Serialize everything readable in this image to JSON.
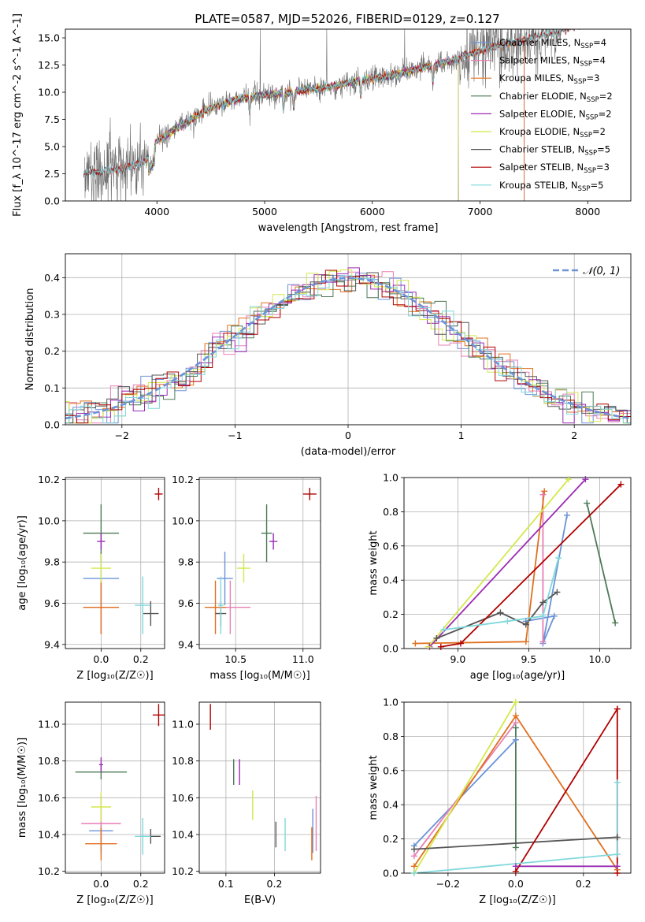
{
  "figure_title": "PLATE=0587, MJD=52026, FIBERID=0129, z=0.127",
  "colors": {
    "chabrier_miles": "#6b93d6",
    "salpeter_miles": "#e87fb4",
    "kroupa_miles": "#e0701f",
    "chabrier_elodie": "#4d7a57",
    "salpeter_elodie": "#9a2bb5",
    "kroupa_elodie": "#d4e84a",
    "chabrier_stelib": "#555555",
    "salpeter_stelib": "#b00000",
    "kroupa_stelib": "#7fd8dc",
    "gauss": "#6b93d6",
    "grid": "#b0b0b0"
  },
  "chart_data": [
    {
      "id": "spectrum",
      "type": "line",
      "title": "PLATE=0587, MJD=52026, FIBERID=0129, z=0.127",
      "xlabel": "wavelength [Angstrom, rest frame]",
      "ylabel": "Flux [f_λ 10^-17 erg cm^-2 s^-1 A^-1]",
      "xlim": [
        3150,
        8400
      ],
      "ylim": [
        0,
        15.8
      ],
      "xticks": [
        4000,
        5000,
        6000,
        7000,
        8000
      ],
      "yticks": [
        0.0,
        2.5,
        5.0,
        7.5,
        10.0,
        12.5,
        15.0
      ],
      "legend": [
        {
          "label": "Chabrier MILES, N",
          "sub": "SSP",
          "suffix": "=4",
          "color": "chabrier_miles"
        },
        {
          "label": "Salpeter MILES, N",
          "sub": "SSP",
          "suffix": "=4",
          "color": "salpeter_miles"
        },
        {
          "label": "Kroupa MILES, N",
          "sub": "SSP",
          "suffix": "=3",
          "color": "kroupa_miles"
        },
        {
          "label": "Chabrier ELODIE, N",
          "sub": "SSP",
          "suffix": "=2",
          "color": "chabrier_elodie"
        },
        {
          "label": "Salpeter ELODIE, N",
          "sub": "SSP",
          "suffix": "=2",
          "color": "salpeter_elodie"
        },
        {
          "label": "Kroupa ELODIE, N",
          "sub": "SSP",
          "suffix": "=2",
          "color": "kroupa_elodie"
        },
        {
          "label": "Chabrier STELIB, N",
          "sub": "SSP",
          "suffix": "=5",
          "color": "chabrier_stelib"
        },
        {
          "label": "Salpeter STELIB, N",
          "sub": "SSP",
          "suffix": "=3",
          "color": "salpeter_stelib"
        },
        {
          "label": "Kroupa STELIB, N",
          "sub": "SSP",
          "suffix": "=5",
          "color": "kroupa_stelib"
        }
      ],
      "continuum_x": [
        3350,
        3500,
        3700,
        3900,
        4000,
        4200,
        4500,
        4800,
        5000,
        5300,
        5600,
        5900,
        6200,
        6500,
        6800,
        7000,
        7200,
        7400
      ],
      "continuum_y": [
        2.6,
        2.7,
        3.0,
        3.7,
        5.5,
        6.8,
        8.6,
        9.5,
        9.7,
        10.1,
        10.5,
        11.1,
        11.6,
        12.3,
        13.1,
        13.8,
        14.3,
        14.8
      ],
      "absorption_lines": [
        4861,
        5175,
        5270,
        5893,
        6563
      ],
      "spike_lines": [
        4958,
        5577,
        6300
      ],
      "model_ranges": {
        "chabrier_miles": [
          3540,
          7410
        ],
        "salpeter_miles": [
          3540,
          7410
        ],
        "kroupa_miles": [
          3540,
          7410
        ],
        "chabrier_elodie": [
          3900,
          6800
        ],
        "salpeter_elodie": [
          3900,
          6800
        ],
        "kroupa_elodie": [
          3900,
          6800
        ],
        "chabrier_stelib": [
          3320,
          8400
        ],
        "salpeter_stelib": [
          3320,
          8400
        ],
        "kroupa_stelib": [
          3320,
          8400
        ]
      }
    },
    {
      "id": "residuals",
      "type": "histogram",
      "xlabel": "(data-model)/error",
      "ylabel": "Normed distribution",
      "xlim": [
        -2.5,
        2.5
      ],
      "ylim": [
        0,
        0.465
      ],
      "xticks": [
        -2,
        -1,
        0,
        1,
        2
      ],
      "yticks": [
        0.0,
        0.1,
        0.2,
        0.3,
        0.4
      ],
      "legend_label": "𝒩(0, 1)",
      "gaussian": {
        "mean": 0,
        "sigma": 1
      }
    },
    {
      "id": "age_vs_Z",
      "type": "scatter",
      "xlabel": "Z [log₁₀(Z/Z☉)]",
      "ylabel": "age  [log₁₀(age/yr)]",
      "xlim": [
        -0.18,
        0.32
      ],
      "ylim": [
        9.38,
        10.21
      ],
      "xticks": [
        0.0,
        0.2
      ],
      "yticks": [
        9.4,
        9.6,
        9.8,
        10.0,
        10.2
      ],
      "points": [
        {
          "model": "chabrier_miles",
          "x": 0.0,
          "xerr": 0.09,
          "y": 9.72,
          "yerr": 0.13
        },
        {
          "model": "salpeter_miles",
          "x": 0.0,
          "xerr": 0.09,
          "y": 9.58,
          "yerr": 0.13
        },
        {
          "model": "kroupa_miles",
          "x": 0.0,
          "xerr": 0.09,
          "y": 9.58,
          "yerr": 0.13
        },
        {
          "model": "chabrier_elodie",
          "x": 0.0,
          "xerr": 0.09,
          "y": 9.94,
          "yerr": 0.14
        },
        {
          "model": "salpeter_elodie",
          "x": 0.0,
          "xerr": 0.02,
          "y": 9.9,
          "yerr": 0.04
        },
        {
          "model": "kroupa_elodie",
          "x": 0.0,
          "xerr": 0.05,
          "y": 9.77,
          "yerr": 0.07
        },
        {
          "model": "chabrier_stelib",
          "x": 0.25,
          "xerr": 0.04,
          "y": 9.55,
          "yerr": 0.06
        },
        {
          "model": "salpeter_stelib",
          "x": 0.29,
          "xerr": 0.02,
          "y": 10.13,
          "yerr": 0.03
        },
        {
          "model": "kroupa_stelib",
          "x": 0.21,
          "xerr": 0.04,
          "y": 9.59,
          "yerr": 0.14
        }
      ]
    },
    {
      "id": "age_vs_mass",
      "type": "scatter",
      "xlabel": "mass [log₁₀(M/M☉)]",
      "ylabel": "",
      "xlim": [
        10.23,
        11.13
      ],
      "ylim": [
        9.38,
        10.21
      ],
      "xticks": [
        10.5,
        11.0
      ],
      "yticks": [
        9.4,
        9.6,
        9.8,
        10.0,
        10.2
      ],
      "points": [
        {
          "model": "chabrier_miles",
          "x": 10.42,
          "xerr": 0.06,
          "y": 9.72,
          "yerr": 0.13
        },
        {
          "model": "salpeter_miles",
          "x": 10.46,
          "xerr": 0.15,
          "y": 9.58,
          "yerr": 0.13
        },
        {
          "model": "kroupa_miles",
          "x": 10.35,
          "xerr": 0.08,
          "y": 9.58,
          "yerr": 0.13
        },
        {
          "model": "chabrier_elodie",
          "x": 10.73,
          "xerr": 0.04,
          "y": 9.94,
          "yerr": 0.14
        },
        {
          "model": "salpeter_elodie",
          "x": 10.78,
          "xerr": 0.03,
          "y": 9.9,
          "yerr": 0.04
        },
        {
          "model": "kroupa_elodie",
          "x": 10.56,
          "xerr": 0.05,
          "y": 9.77,
          "yerr": 0.07
        },
        {
          "model": "chabrier_stelib",
          "x": 10.39,
          "xerr": 0.04,
          "y": 9.55,
          "yerr": 0.06
        },
        {
          "model": "salpeter_stelib",
          "x": 11.05,
          "xerr": 0.05,
          "y": 10.13,
          "yerr": 0.03
        },
        {
          "model": "kroupa_stelib",
          "x": 10.39,
          "xerr": 0.02,
          "y": 9.59,
          "yerr": 0.14
        }
      ]
    },
    {
      "id": "weight_vs_age",
      "type": "line",
      "xlabel": "age  [log₁₀(age/yr)]",
      "ylabel": "mass weight",
      "xlim": [
        8.62,
        10.22
      ],
      "ylim": [
        0,
        1
      ],
      "xticks": [
        9.0,
        9.5,
        10.0
      ],
      "yticks": [
        0.0,
        0.2,
        0.4,
        0.6,
        0.8,
        1.0
      ],
      "series": [
        {
          "model": "chabrier_miles",
          "x": [
            9.48,
            9.68,
            9.6,
            9.77
          ],
          "y": [
            0.16,
            0.19,
            0.03,
            0.78
          ]
        },
        {
          "model": "salpeter_miles",
          "x": [
            9.6,
            9.6
          ],
          "y": [
            0.04,
            0.9
          ]
        },
        {
          "model": "kroupa_miles",
          "x": [
            8.7,
            9.48,
            9.61
          ],
          "y": [
            0.03,
            0.04,
            0.92
          ]
        },
        {
          "model": "chabrier_elodie",
          "x": [
            9.91,
            10.11
          ],
          "y": [
            0.85,
            0.15
          ]
        },
        {
          "model": "salpeter_elodie",
          "x": [
            8.8,
            9.9
          ],
          "y": [
            0.01,
            0.99
          ]
        },
        {
          "model": "kroupa_elodie",
          "x": [
            8.79,
            9.78
          ],
          "y": [
            0.01,
            0.99
          ]
        },
        {
          "model": "chabrier_stelib",
          "x": [
            8.85,
            9.3,
            9.48,
            9.6,
            9.7
          ],
          "y": [
            0.06,
            0.21,
            0.14,
            0.27,
            0.33
          ]
        },
        {
          "model": "salpeter_stelib",
          "x": [
            8.88,
            9.02,
            10.15
          ],
          "y": [
            0.01,
            0.03,
            0.96
          ]
        },
        {
          "model": "kroupa_stelib",
          "x": [
            8.9,
            9.35,
            9.6,
            9.71
          ],
          "y": [
            0.11,
            0.16,
            0.19,
            0.53
          ]
        }
      ]
    },
    {
      "id": "mass_vs_Z",
      "type": "scatter",
      "xlabel": "Z [log₁₀(Z/Z☉)]",
      "ylabel": "mass [log₁₀(M/M☉)]",
      "xlim": [
        -0.18,
        0.32
      ],
      "ylim": [
        10.19,
        11.12
      ],
      "xticks": [
        0.0,
        0.2
      ],
      "yticks": [
        10.2,
        10.4,
        10.6,
        10.8,
        11.0
      ],
      "points": [
        {
          "model": "chabrier_miles",
          "x": 0.0,
          "xerr": 0.06,
          "y": 10.42,
          "yerr": 0.12
        },
        {
          "model": "salpeter_miles",
          "x": 0.0,
          "xerr": 0.1,
          "y": 10.46,
          "yerr": 0.15
        },
        {
          "model": "kroupa_miles",
          "x": 0.0,
          "xerr": 0.08,
          "y": 10.35,
          "yerr": 0.09
        },
        {
          "model": "chabrier_elodie",
          "x": 0.0,
          "xerr": 0.13,
          "y": 10.74,
          "yerr": 0.04
        },
        {
          "model": "salpeter_elodie",
          "x": 0.0,
          "xerr": 0.01,
          "y": 10.78,
          "yerr": 0.04
        },
        {
          "model": "kroupa_elodie",
          "x": 0.0,
          "xerr": 0.05,
          "y": 10.55,
          "yerr": 0.08
        },
        {
          "model": "chabrier_stelib",
          "x": 0.25,
          "xerr": 0.05,
          "y": 10.39,
          "yerr": 0.04
        },
        {
          "model": "salpeter_stelib",
          "x": 0.29,
          "xerr": 0.03,
          "y": 11.05,
          "yerr": 0.06
        },
        {
          "model": "kroupa_stelib",
          "x": 0.21,
          "xerr": 0.04,
          "y": 10.39,
          "yerr": 0.1
        }
      ]
    },
    {
      "id": "mass_vs_ebv",
      "type": "scatter",
      "xlabel": "E(B-V)",
      "ylabel": "",
      "xlim": [
        0.045,
        0.295
      ],
      "ylim": [
        10.19,
        11.12
      ],
      "xticks": [
        0.1,
        0.2
      ],
      "yticks": [
        10.2,
        10.4,
        10.6,
        10.8,
        11.0
      ],
      "points": [
        {
          "model": "chabrier_miles",
          "x": 0.279,
          "xerr": 0,
          "y": 10.42,
          "yerr": 0.12
        },
        {
          "model": "salpeter_miles",
          "x": 0.286,
          "xerr": 0,
          "y": 10.46,
          "yerr": 0.15
        },
        {
          "model": "kroupa_miles",
          "x": 0.277,
          "xerr": 0,
          "y": 10.35,
          "yerr": 0.09
        },
        {
          "model": "chabrier_elodie",
          "x": 0.116,
          "xerr": 0,
          "y": 10.74,
          "yerr": 0.07
        },
        {
          "model": "salpeter_elodie",
          "x": 0.128,
          "xerr": 0,
          "y": 10.74,
          "yerr": 0.07
        },
        {
          "model": "kroupa_elodie",
          "x": 0.155,
          "xerr": 0,
          "y": 10.56,
          "yerr": 0.08
        },
        {
          "model": "chabrier_stelib",
          "x": 0.203,
          "xerr": 0,
          "y": 10.4,
          "yerr": 0.07
        },
        {
          "model": "salpeter_stelib",
          "x": 0.068,
          "xerr": 0,
          "y": 11.04,
          "yerr": 0.07
        },
        {
          "model": "kroupa_stelib",
          "x": 0.222,
          "xerr": 0,
          "y": 10.4,
          "yerr": 0.09
        }
      ]
    },
    {
      "id": "weight_vs_Z",
      "type": "line",
      "xlabel": "Z [log₁₀(Z/Z☉)]",
      "ylabel": "mass weight",
      "xlim": [
        -0.33,
        0.34
      ],
      "ylim": [
        0,
        1
      ],
      "xticks": [
        -0.2,
        0.0,
        0.2
      ],
      "yticks": [
        0.0,
        0.2,
        0.4,
        0.6,
        0.8,
        1.0
      ],
      "series": [
        {
          "model": "chabrier_miles",
          "x": [
            -0.3,
            0.0
          ],
          "y": [
            0.16,
            0.78
          ]
        },
        {
          "model": "salpeter_miles",
          "x": [
            -0.3,
            0.0
          ],
          "y": [
            0.1,
            0.88
          ]
        },
        {
          "model": "kroupa_miles",
          "x": [
            -0.3,
            0.0,
            0.3
          ],
          "y": [
            0.04,
            0.92,
            0.02
          ]
        },
        {
          "model": "chabrier_elodie",
          "x": [
            0.0,
            0.0
          ],
          "y": [
            0.15,
            0.85
          ]
        },
        {
          "model": "salpeter_elodie",
          "x": [
            0.0,
            0.3
          ],
          "y": [
            0.04,
            0.04
          ]
        },
        {
          "model": "kroupa_elodie",
          "x": [
            -0.3,
            0.0
          ],
          "y": [
            0.0,
            1.0
          ]
        },
        {
          "model": "chabrier_stelib",
          "x": [
            -0.3,
            0.3
          ],
          "y": [
            0.14,
            0.21
          ]
        },
        {
          "model": "salpeter_stelib",
          "x": [
            0.0,
            0.3,
            0.3
          ],
          "y": [
            0.01,
            0.96,
            0.0
          ]
        },
        {
          "model": "kroupa_stelib",
          "x": [
            -0.3,
            0.3,
            0.3
          ],
          "y": [
            0.0,
            0.11,
            0.53
          ]
        }
      ]
    }
  ]
}
